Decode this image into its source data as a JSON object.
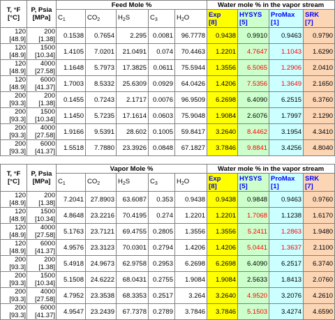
{
  "headers": {
    "temp_label": "T, °F",
    "temp_unit": "[°C]",
    "pres_label": "P, Psia",
    "pres_unit": "[MPa]",
    "water_group": "Water mole % in the vapor stream",
    "c1": "C",
    "c1_sub": "1",
    "co2": "CO",
    "co2_sub": "2",
    "h2s": "H",
    "h2s_sub": "2",
    "h2s_tail": "S",
    "c3": "C",
    "c3_sub": "3",
    "h2o": "H",
    "h2o_sub": "2",
    "h2o_tail": "O",
    "exp": "Exp",
    "exp_ref": "[8]",
    "hysys": "HYSYS",
    "hysys_ref": "[5]",
    "promax": "ProMax",
    "promax_ref": "[1]",
    "srk": "SRK",
    "srk_ref": "[7]"
  },
  "tables": [
    {
      "group_label": "Feed Mole %",
      "rows": [
        {
          "t": "120",
          "tc": "[48.9]",
          "p": "200",
          "pm": "[1.38]",
          "c1": "0.1538",
          "co2": "0.7654",
          "h2s": "2.295",
          "c3": "0.0081",
          "h2o": "96.7778",
          "exp": "0.9438",
          "hysys": "0.9910",
          "promax": "0.9463",
          "srk": "0.9790",
          "hysys_red": false,
          "promax_red": false
        },
        {
          "t": "120",
          "tc": "[48.9]",
          "p": "1500",
          "pm": "[10.34]",
          "c1": "1.4105",
          "co2": "7.0201",
          "h2s": "21.0491",
          "c3": "0.074",
          "h2o": "70.4463",
          "exp": "1.2201",
          "hysys": "4.7647",
          "promax": "1.1043",
          "srk": "1.6290",
          "hysys_red": true,
          "promax_red": true
        },
        {
          "t": "120",
          "tc": "[48.9]",
          "p": "4000",
          "pm": "[27.58]",
          "c1": "1.1648",
          "co2": "5.7973",
          "h2s": "17.3825",
          "c3": "0.0611",
          "h2o": "75.5944",
          "exp": "1.3556",
          "hysys": "6.5065",
          "promax": "1.2906",
          "srk": "2.0410",
          "hysys_red": true,
          "promax_red": true
        },
        {
          "t": "120",
          "tc": "[48.9]",
          "p": "6000",
          "pm": "[41.37]",
          "c1": "1.7003",
          "co2": "8.5332",
          "h2s": "25.6309",
          "c3": "0.0929",
          "h2o": "64.0426",
          "exp": "1.4206",
          "hysys": "7.5356",
          "promax": "1.3649",
          "srk": "2.1650",
          "hysys_red": true,
          "promax_red": true
        },
        {
          "t": "200",
          "tc": "[93.3]",
          "p": "200",
          "pm": "[1.38]",
          "c1": "0.1455",
          "co2": "0.7243",
          "h2s": "2.1717",
          "c3": "0.0076",
          "h2o": "96.9509",
          "exp": "6.2698",
          "hysys": "6.4090",
          "promax": "6.2515",
          "srk": "6.3760",
          "hysys_red": false,
          "promax_red": false
        },
        {
          "t": "200",
          "tc": "[93.3]",
          "p": "1500",
          "pm": "[10.34]",
          "c1": "1.1450",
          "co2": "5.7235",
          "h2s": "17.1614",
          "c3": "0.0603",
          "h2o": "75.9048",
          "exp": "1.9084",
          "hysys": "2.6076",
          "promax": "1.7997",
          "srk": "2.1290",
          "hysys_red": false,
          "promax_red": false
        },
        {
          "t": "200",
          "tc": "[93.3]",
          "p": "4000",
          "pm": "[27.58]",
          "c1": "1.9166",
          "co2": "9.5391",
          "h2s": "28.602",
          "c3": "0.1005",
          "h2o": "59.8417",
          "exp": "3.2640",
          "hysys": "8.4462",
          "promax": "3.1954",
          "srk": "4.3410",
          "hysys_red": true,
          "promax_red": false
        },
        {
          "t": "200",
          "tc": "[93.3]",
          "p": "6000",
          "pm": "[41.37]",
          "c1": "1.5518",
          "co2": "7.7880",
          "h2s": "23.3926",
          "c3": "0.0848",
          "h2o": "67.1827",
          "exp": "3.7846",
          "hysys": "9.8841",
          "promax": "3.4256",
          "srk": "4.8040",
          "hysys_red": true,
          "promax_red": false
        }
      ]
    },
    {
      "group_label": "Vapor Mole %",
      "rows": [
        {
          "t": "120",
          "tc": "[48.9]",
          "p": "200",
          "pm": "[1.38]",
          "c1": "7.2041",
          "co2": "27.8903",
          "h2s": "63.6087",
          "c3": "0.353",
          "h2o": "0.9438",
          "exp": "0.9438",
          "hysys": "0.9848",
          "promax": "0.9463",
          "srk": "0.9760",
          "hysys_red": false,
          "promax_red": false
        },
        {
          "t": "120",
          "tc": "[48.9]",
          "p": "1500",
          "pm": "[10.34]",
          "c1": "4.8648",
          "co2": "23.2216",
          "h2s": "70.4195",
          "c3": "0.274",
          "h2o": "1.2201",
          "exp": "1.2201",
          "hysys": "1.7068",
          "promax": "1.1238",
          "srk": "1.6170",
          "hysys_red": true,
          "promax_red": false
        },
        {
          "t": "120",
          "tc": "[48.9]",
          "p": "4000",
          "pm": "[27.58]",
          "c1": "5.1763",
          "co2": "23.7121",
          "h2s": "69.4755",
          "c3": "0.2805",
          "h2o": "1.3556",
          "exp": "1.3556",
          "hysys": "5.2411",
          "promax": "1.2863",
          "srk": "1.9480",
          "hysys_red": true,
          "promax_red": true
        },
        {
          "t": "120",
          "tc": "[48.9]",
          "p": "6000",
          "pm": "[41.37]",
          "c1": "4.9576",
          "co2": "23.3123",
          "h2s": "70.0301",
          "c3": "0.2794",
          "h2o": "1.4206",
          "exp": "1.4206",
          "hysys": "5.0441",
          "promax": "1.3637",
          "srk": "2.1100",
          "hysys_red": true,
          "promax_red": true
        },
        {
          "t": "200",
          "tc": "[93.3]",
          "p": "200",
          "pm": "[1.38]",
          "c1": "5.4918",
          "co2": "24.9673",
          "h2s": "62.9758",
          "c3": "0.2953",
          "h2o": "6.2698",
          "exp": "6.2698",
          "hysys": "6.4090",
          "promax": "6.2517",
          "srk": "6.3740",
          "hysys_red": false,
          "promax_red": false
        },
        {
          "t": "200",
          "tc": "[93.3]",
          "p": "1500",
          "pm": "[10.34]",
          "c1": "5.1508",
          "co2": "24.6222",
          "h2s": "68.0431",
          "c3": "0.2755",
          "h2o": "1.9084",
          "exp": "1.9084",
          "hysys": "2.5633",
          "promax": "1.8413",
          "srk": "2.0760",
          "hysys_red": false,
          "promax_red": false
        },
        {
          "t": "200",
          "tc": "[93.3]",
          "p": "4000",
          "pm": "[27.58]",
          "c1": "4.7952",
          "co2": "23.3538",
          "h2s": "68.3353",
          "c3": "0.2517",
          "h2o": "3.264",
          "exp": "3.2640",
          "hysys": "4.9520",
          "promax": "3.2076",
          "srk": "4.2610",
          "hysys_red": true,
          "promax_red": false
        },
        {
          "t": "200",
          "tc": "[93.3]",
          "p": "6000",
          "pm": "[41.37]",
          "c1": "4.9547",
          "co2": "23.2439",
          "h2s": "67.7378",
          "c3": "0.2789",
          "h2o": "3.7846",
          "exp": "3.7846",
          "hysys": "5.1503",
          "promax": "3.4274",
          "srk": "4.6590",
          "hysys_red": true,
          "promax_red": false
        }
      ]
    }
  ]
}
